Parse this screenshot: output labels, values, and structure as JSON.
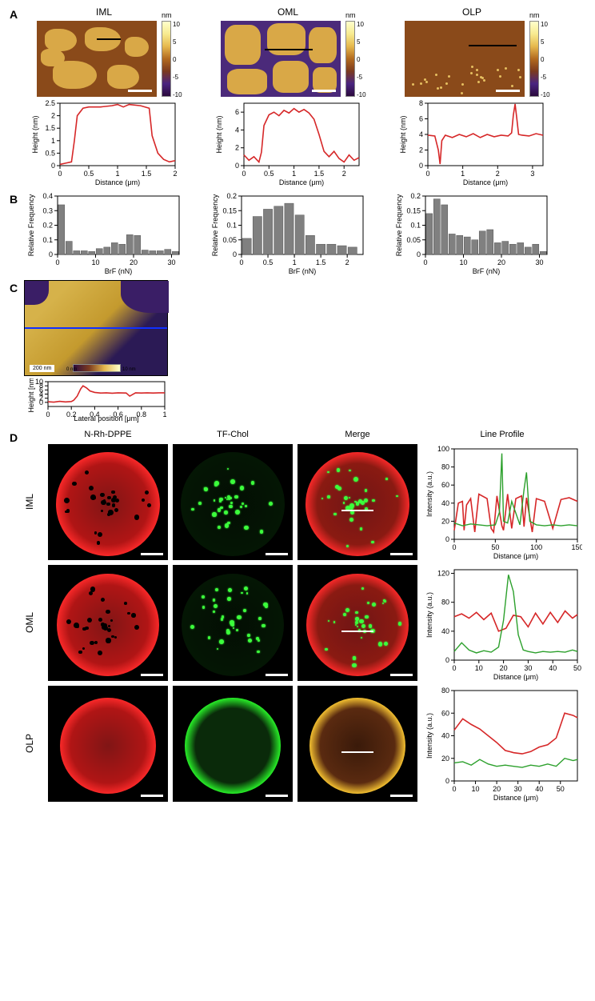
{
  "panelA": {
    "columns": [
      "IML",
      "OML",
      "OLP"
    ],
    "colorbar": {
      "unit": "nm",
      "ticks": [
        10,
        5,
        0,
        -5,
        -10
      ]
    },
    "profiles": [
      {
        "xlabel": "Distance (μm)",
        "ylabel": "Height (nm)",
        "xlim": [
          0.0,
          2.0
        ],
        "xticks": [
          0.0,
          0.5,
          1.0,
          1.5,
          2.0
        ],
        "ylim": [
          0,
          2.5
        ],
        "yticks": [
          0.0,
          0.5,
          1.0,
          1.5,
          2.0,
          2.5
        ],
        "x": [
          0.0,
          0.1,
          0.2,
          0.25,
          0.3,
          0.4,
          0.5,
          0.7,
          0.9,
          1.0,
          1.1,
          1.2,
          1.4,
          1.55,
          1.6,
          1.7,
          1.8,
          1.9,
          2.0
        ],
        "y": [
          0.05,
          0.1,
          0.15,
          1.0,
          2.0,
          2.3,
          2.35,
          2.35,
          2.4,
          2.45,
          2.35,
          2.45,
          2.4,
          2.3,
          1.2,
          0.5,
          0.25,
          0.15,
          0.2
        ]
      },
      {
        "xlabel": "Distance (μm)",
        "ylabel": "Height (nm)",
        "xlim": [
          0.0,
          2.3
        ],
        "xticks": [
          0.0,
          0.5,
          1.0,
          1.5,
          2.0
        ],
        "ylim": [
          0,
          7
        ],
        "yticks": [
          0,
          2,
          4,
          6
        ],
        "x": [
          0.0,
          0.1,
          0.2,
          0.3,
          0.35,
          0.4,
          0.5,
          0.6,
          0.7,
          0.8,
          0.9,
          1.0,
          1.1,
          1.2,
          1.3,
          1.4,
          1.5,
          1.6,
          1.7,
          1.8,
          1.9,
          2.0,
          2.1,
          2.2,
          2.3
        ],
        "y": [
          1.2,
          0.6,
          1.0,
          0.4,
          1.5,
          4.5,
          5.7,
          6.0,
          5.6,
          6.2,
          5.9,
          6.4,
          6.0,
          6.3,
          5.9,
          5.2,
          3.5,
          1.6,
          1.0,
          1.6,
          0.8,
          0.4,
          1.2,
          0.6,
          0.9
        ]
      },
      {
        "xlabel": "Distance (μm)",
        "ylabel": "Height (nm)",
        "xlim": [
          0,
          3.3
        ],
        "xticks": [
          0,
          1,
          2,
          3
        ],
        "ylim": [
          0,
          8
        ],
        "yticks": [
          0,
          2,
          4,
          6,
          8
        ],
        "x": [
          0.0,
          0.2,
          0.3,
          0.35,
          0.4,
          0.5,
          0.7,
          0.9,
          1.1,
          1.3,
          1.5,
          1.7,
          1.9,
          2.1,
          2.3,
          2.4,
          2.45,
          2.5,
          2.55,
          2.6,
          2.7,
          2.9,
          3.1,
          3.3
        ],
        "y": [
          3.9,
          3.8,
          2.0,
          0.2,
          3.2,
          3.9,
          3.6,
          4.0,
          3.7,
          4.1,
          3.6,
          4.0,
          3.7,
          3.9,
          3.8,
          4.2,
          6.5,
          7.9,
          6.0,
          4.0,
          3.9,
          3.8,
          4.1,
          3.9
        ]
      }
    ]
  },
  "panelB": {
    "histograms": [
      {
        "xlabel": "BrF (nN)",
        "ylabel": "Relative Frequency",
        "xlim": [
          0,
          32
        ],
        "xticks": [
          0,
          10,
          20,
          30
        ],
        "ylim": [
          0,
          0.4
        ],
        "yticks": [
          0.0,
          0.1,
          0.2,
          0.3,
          0.4
        ],
        "bin_centers": [
          1,
          3,
          5,
          7,
          9,
          11,
          13,
          15,
          17,
          19,
          21,
          23,
          25,
          27,
          29,
          31
        ],
        "freq": [
          0.34,
          0.09,
          0.025,
          0.025,
          0.02,
          0.04,
          0.05,
          0.08,
          0.07,
          0.135,
          0.13,
          0.03,
          0.025,
          0.025,
          0.035,
          0.02
        ]
      },
      {
        "xlabel": "BrF (nN)",
        "ylabel": "Relative Frequency",
        "xlim": [
          0,
          2.3
        ],
        "xticks": [
          0.0,
          0.5,
          1.0,
          1.5,
          2.0
        ],
        "ylim": [
          0,
          0.2
        ],
        "yticks": [
          0.0,
          0.05,
          0.1,
          0.15,
          0.2
        ],
        "bin_centers": [
          0.1,
          0.3,
          0.5,
          0.7,
          0.9,
          1.1,
          1.3,
          1.5,
          1.7,
          1.9,
          2.1
        ],
        "freq": [
          0.055,
          0.13,
          0.155,
          0.165,
          0.175,
          0.135,
          0.065,
          0.035,
          0.035,
          0.03,
          0.025
        ]
      },
      {
        "xlabel": "BrF (nN)",
        "ylabel": "Relative Frequency",
        "xlim": [
          0,
          32
        ],
        "xticks": [
          0,
          10,
          20,
          30
        ],
        "ylim": [
          0,
          0.2
        ],
        "yticks": [
          0.0,
          0.05,
          0.1,
          0.15,
          0.2
        ],
        "bin_centers": [
          1,
          3,
          5,
          7,
          9,
          11,
          13,
          15,
          17,
          19,
          21,
          23,
          25,
          27,
          29,
          31
        ],
        "freq": [
          0.14,
          0.19,
          0.17,
          0.07,
          0.065,
          0.06,
          0.05,
          0.08,
          0.085,
          0.04,
          0.045,
          0.035,
          0.04,
          0.025,
          0.035,
          0.01
        ]
      }
    ]
  },
  "panelC": {
    "scale_label": "200 nm",
    "colorbar_min": "0 nm",
    "colorbar_max": "10 nm",
    "profile": {
      "xlabel": "Lateral position [μm]",
      "ylabel": "Height [nm]",
      "xlim": [
        0.0,
        1.0
      ],
      "xticks": [
        0.0,
        0.2,
        0.4,
        0.6,
        0.8,
        1.0
      ],
      "ylim": [
        -2,
        10
      ],
      "yticks": [
        0,
        2,
        4,
        6,
        8,
        10
      ],
      "x": [
        0.0,
        0.05,
        0.1,
        0.15,
        0.2,
        0.22,
        0.25,
        0.28,
        0.3,
        0.33,
        0.36,
        0.4,
        0.45,
        0.5,
        0.55,
        0.6,
        0.67,
        0.7,
        0.75,
        0.8,
        0.85,
        0.9,
        0.95,
        1.0
      ],
      "y": [
        0.3,
        0.1,
        0.5,
        0.2,
        0.4,
        1.0,
        3.0,
        6.5,
        8.0,
        7.0,
        5.5,
        4.8,
        4.5,
        4.6,
        4.4,
        4.6,
        4.5,
        3.0,
        4.6,
        4.5,
        4.6,
        4.5,
        4.6,
        4.6
      ]
    }
  },
  "panelD": {
    "col_headers": [
      "N-Rh-DPPE",
      "TF-Chol",
      "Merge",
      "Line Profile"
    ],
    "rows": [
      "IML",
      "OML",
      "OLP"
    ],
    "intensity": [
      {
        "xlabel": "Distance (μm)",
        "ylabel": "Intensity (a.u.)",
        "xlim": [
          0,
          150
        ],
        "xticks": [
          0,
          50,
          100,
          150
        ],
        "ylim": [
          0,
          100
        ],
        "yticks": [
          0,
          20,
          40,
          60,
          80,
          100
        ],
        "red": {
          "x": [
            0,
            5,
            10,
            12,
            15,
            20,
            25,
            30,
            40,
            45,
            48,
            52,
            58,
            60,
            65,
            70,
            75,
            82,
            85,
            88,
            95,
            100,
            110,
            120,
            130,
            140,
            150
          ],
          "y": [
            10,
            40,
            42,
            10,
            38,
            45,
            8,
            50,
            45,
            12,
            8,
            48,
            15,
            10,
            50,
            12,
            45,
            48,
            14,
            46,
            8,
            45,
            42,
            12,
            44,
            46,
            42
          ]
        },
        "green": {
          "x": [
            0,
            10,
            20,
            30,
            40,
            50,
            55,
            58,
            60,
            65,
            70,
            80,
            85,
            88,
            92,
            100,
            110,
            120,
            130,
            140,
            150
          ],
          "y": [
            18,
            15,
            17,
            16,
            15,
            16,
            30,
            95,
            20,
            18,
            42,
            16,
            55,
            74,
            20,
            16,
            15,
            16,
            15,
            16,
            15
          ]
        }
      },
      {
        "xlabel": "Distance (μm)",
        "ylabel": "Intensity (a.u.)",
        "xlim": [
          0,
          50
        ],
        "xticks": [
          0,
          10,
          20,
          30,
          40,
          50
        ],
        "ylim": [
          0,
          125
        ],
        "yticks": [
          0,
          40,
          80,
          120
        ],
        "red": {
          "x": [
            0,
            3,
            6,
            9,
            12,
            15,
            18,
            21,
            24,
            27,
            30,
            33,
            36,
            39,
            42,
            45,
            48,
            50
          ],
          "y": [
            60,
            64,
            58,
            66,
            56,
            65,
            40,
            44,
            62,
            60,
            46,
            65,
            50,
            66,
            52,
            68,
            58,
            63
          ]
        },
        "green": {
          "x": [
            0,
            3,
            6,
            9,
            12,
            15,
            18,
            20,
            22,
            24,
            26,
            28,
            30,
            33,
            36,
            39,
            42,
            45,
            48,
            50
          ],
          "y": [
            12,
            24,
            14,
            10,
            13,
            11,
            18,
            55,
            118,
            95,
            35,
            14,
            12,
            10,
            12,
            11,
            12,
            11,
            14,
            12
          ]
        }
      },
      {
        "xlabel": "Distance (μm)",
        "ylabel": "Intensity (a.u.)",
        "xlim": [
          0,
          58
        ],
        "xticks": [
          0,
          10,
          20,
          30,
          40,
          50
        ],
        "ylim": [
          0,
          80
        ],
        "yticks": [
          0,
          20,
          40,
          60,
          80
        ],
        "red": {
          "x": [
            0,
            4,
            8,
            12,
            16,
            20,
            24,
            28,
            32,
            36,
            40,
            44,
            48,
            52,
            56,
            58
          ],
          "y": [
            45,
            55,
            50,
            46,
            40,
            34,
            27,
            25,
            24,
            26,
            30,
            32,
            38,
            60,
            58,
            56
          ]
        },
        "green": {
          "x": [
            0,
            4,
            8,
            12,
            16,
            20,
            24,
            28,
            32,
            36,
            40,
            44,
            48,
            52,
            56,
            58
          ],
          "y": [
            16,
            17,
            14,
            19,
            15,
            13,
            14,
            13,
            12,
            14,
            13,
            15,
            13,
            20,
            18,
            19
          ]
        }
      }
    ],
    "colors": {
      "red": "#d62728",
      "green": "#2ca02c"
    }
  }
}
